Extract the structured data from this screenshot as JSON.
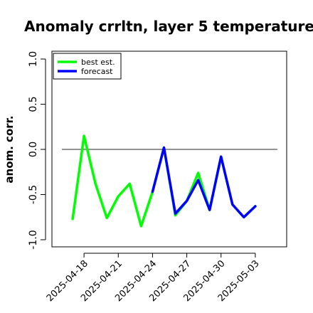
{
  "chart_data": {
    "type": "line",
    "title": "Anomaly crrltn, layer 5 temperature",
    "xlabel": "",
    "ylabel": "anom. corr.",
    "ylim": [
      -1.0,
      1.0
    ],
    "y_ticks": [
      "-1.0",
      "-0.5",
      "0.0",
      "0.5",
      "1.0"
    ],
    "y_tick_values": [
      -1.0,
      -0.5,
      0.0,
      0.5,
      1.0
    ],
    "x_tick_labels": [
      "2025-04-18",
      "2025-04-21",
      "2025-04-24",
      "2025-04-27",
      "2025-04-30",
      "2025-05-03"
    ],
    "x_tick_dates": [
      "2025-04-18",
      "2025-04-21",
      "2025-04-24",
      "2025-04-27",
      "2025-04-30",
      "2025-05-03"
    ],
    "highlighted_tick": "2025-04-24",
    "highlight_color": "#228b22",
    "x_range": [
      "2025-04-16",
      "2025-05-05"
    ],
    "reference_line": 0.0,
    "grid": false,
    "legend_position": "top-left",
    "series": [
      {
        "name": "best est.",
        "color": "#00ff00",
        "x": [
          "2025-04-17",
          "2025-04-18",
          "2025-04-19",
          "2025-04-20",
          "2025-04-21",
          "2025-04-22",
          "2025-04-23",
          "2025-04-24",
          "2025-04-25",
          "2025-04-26",
          "2025-04-27",
          "2025-04-28",
          "2025-04-29",
          "2025-04-30",
          "2025-05-01",
          "2025-05-02",
          "2025-05-03"
        ],
        "values": [
          -0.77,
          0.15,
          -0.38,
          -0.76,
          -0.52,
          -0.38,
          -0.85,
          -0.47,
          0.02,
          -0.73,
          -0.57,
          -0.26,
          -0.67,
          -0.08,
          -0.61,
          -0.75,
          -0.63
        ]
      },
      {
        "name": "forecast",
        "color": "#0000ff",
        "x": [
          "2025-04-24",
          "2025-04-25",
          "2025-04-26",
          "2025-04-27",
          "2025-04-28",
          "2025-04-29",
          "2025-04-30",
          "2025-05-01",
          "2025-05-02",
          "2025-05-03"
        ],
        "values": [
          -0.47,
          0.02,
          -0.71,
          -0.57,
          -0.34,
          -0.67,
          -0.08,
          -0.61,
          -0.75,
          -0.63
        ]
      }
    ]
  }
}
